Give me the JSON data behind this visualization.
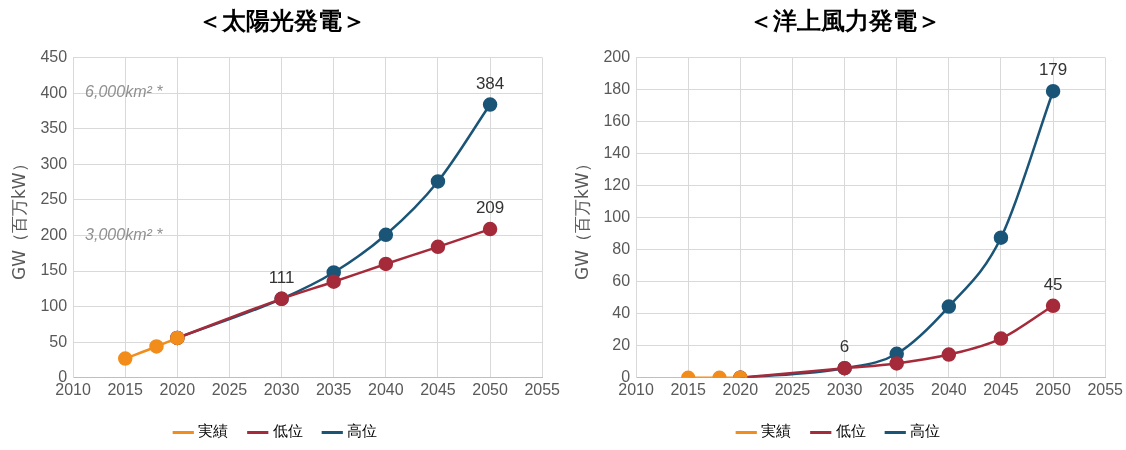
{
  "chart_data": [
    {
      "type": "line",
      "title": "＜太陽光発電＞",
      "ylabel": "GW（百万kW）",
      "xlim": [
        2010,
        2055
      ],
      "xticks": [
        2010,
        2015,
        2020,
        2025,
        2030,
        2035,
        2040,
        2045,
        2050,
        2055
      ],
      "ylim": [
        0,
        450
      ],
      "yticks": [
        0,
        50,
        100,
        150,
        200,
        250,
        300,
        350,
        400,
        450
      ],
      "grid": true,
      "legend": "bottom",
      "marker": "circle",
      "annotations": [
        "6,000km² *",
        "3,000km² *"
      ],
      "series": [
        {
          "name": "実績",
          "color": "#f28c1a",
          "x": [
            2015,
            2018,
            2020
          ],
          "values": [
            27,
            44,
            56
          ]
        },
        {
          "name": "低位",
          "color": "#a52a3a",
          "x": [
            2020,
            2030,
            2035,
            2040,
            2045,
            2050
          ],
          "values": [
            56,
            111,
            135,
            160,
            184,
            209
          ],
          "value_labels": [
            null,
            null,
            null,
            null,
            null,
            "209"
          ]
        },
        {
          "name": "高位",
          "color": "#1a5577",
          "x": [
            2020,
            2030,
            2035,
            2040,
            2045,
            2050
          ],
          "values": [
            56,
            111,
            148,
            201,
            276,
            384
          ],
          "value_labels": [
            null,
            "111",
            null,
            null,
            null,
            "384"
          ]
        }
      ]
    },
    {
      "type": "line",
      "title": "＜洋上風力発電＞",
      "ylabel": "GW（百万kW）",
      "xlim": [
        2010,
        2055
      ],
      "xticks": [
        2010,
        2015,
        2020,
        2025,
        2030,
        2035,
        2040,
        2045,
        2050,
        2055
      ],
      "ylim": [
        0,
        200
      ],
      "yticks": [
        0,
        20,
        40,
        60,
        80,
        100,
        120,
        140,
        160,
        180,
        200
      ],
      "grid": true,
      "legend": "bottom",
      "marker": "circle",
      "series": [
        {
          "name": "実績",
          "color": "#f28c1a",
          "x": [
            2015,
            2018,
            2020
          ],
          "values": [
            0,
            0,
            0
          ]
        },
        {
          "name": "低位",
          "color": "#a52a3a",
          "x": [
            2020,
            2030,
            2035,
            2040,
            2045,
            2050
          ],
          "values": [
            0,
            6,
            9,
            14.5,
            24.5,
            45
          ],
          "value_labels": [
            null,
            null,
            null,
            null,
            null,
            "45"
          ]
        },
        {
          "name": "高位",
          "color": "#1a5577",
          "x": [
            2020,
            2030,
            2035,
            2040,
            2045,
            2050
          ],
          "values": [
            0,
            6,
            15,
            44.5,
            87.5,
            179
          ],
          "value_labels": [
            null,
            "6",
            null,
            null,
            null,
            "179"
          ]
        }
      ]
    }
  ]
}
